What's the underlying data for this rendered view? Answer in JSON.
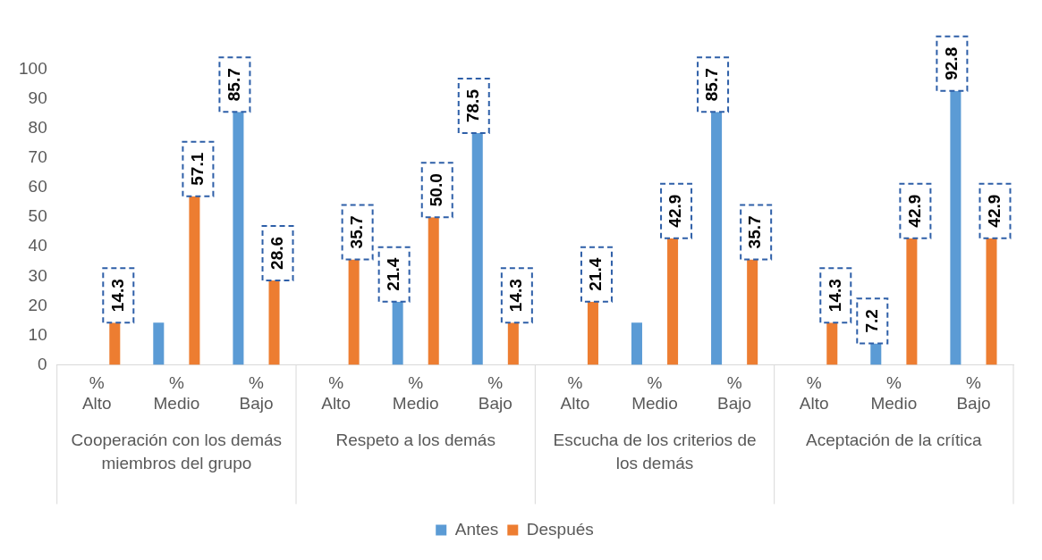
{
  "chart_data": {
    "type": "bar",
    "categories": [
      "%\nAlto",
      "%\nMedio",
      "%\nBajo",
      "%\nAlto",
      "%\nMedio",
      "%\nBajo",
      "%\nAlto",
      "%\nMedio",
      "%\nBajo",
      "%\nAlto",
      "%\nMedio",
      "%\nBajo"
    ],
    "series": [
      {
        "name": "Antes",
        "color": "#5b9bd5",
        "values": [
          0,
          14.3,
          85.7,
          0,
          21.4,
          78.5,
          0,
          14.3,
          85.7,
          0,
          7.2,
          92.8
        ],
        "value_labels": [
          null,
          null,
          "85.7",
          null,
          "21.4",
          "78.5",
          null,
          null,
          "85.7",
          null,
          "7.2",
          "92.8"
        ]
      },
      {
        "name": "Después",
        "color": "#ed7d31",
        "values": [
          14.3,
          57.1,
          28.6,
          35.7,
          50.0,
          14.3,
          21.4,
          42.9,
          35.7,
          14.3,
          42.9,
          42.9
        ],
        "value_labels": [
          "14.3",
          "57.1",
          "28.6",
          "35.7",
          "50.0",
          "14.3",
          "21.4",
          "42.9",
          "35.7",
          "14.3",
          "42.9",
          "42.9"
        ]
      }
    ],
    "annotations": [
      "Cooperación con los demás miembros del grupo",
      "Respeto a los demás",
      "Escucha de los criterios de los demás",
      "Aceptación de la crítica"
    ],
    "ylim": [
      0,
      100
    ],
    "yticks": [
      0,
      10,
      20,
      30,
      40,
      50,
      60,
      70,
      80,
      90,
      100
    ],
    "grid": false,
    "legend": "bottom"
  }
}
